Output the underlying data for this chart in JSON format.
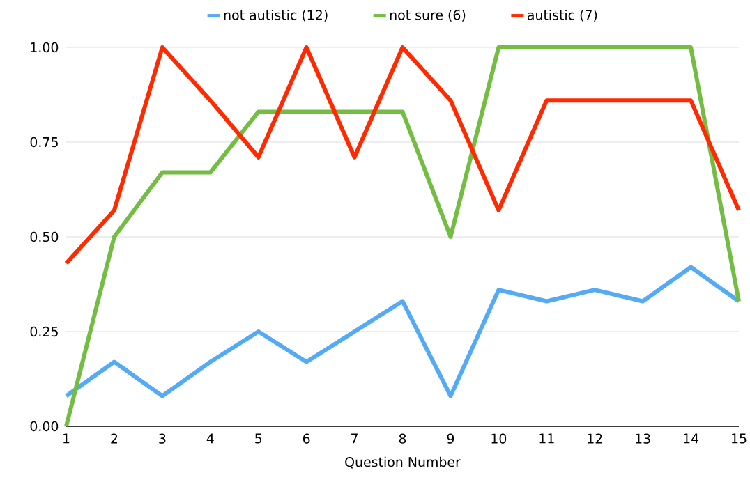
{
  "chart_data": {
    "type": "line",
    "xlabel": "Question Number",
    "x": [
      1,
      2,
      3,
      4,
      5,
      6,
      7,
      8,
      9,
      10,
      11,
      12,
      13,
      14,
      15
    ],
    "series": [
      {
        "name": "not autistic (12)",
        "color": "#55aaf5",
        "values": [
          0.08,
          0.17,
          0.08,
          0.17,
          0.25,
          0.17,
          0.25,
          0.33,
          0.08,
          0.36,
          0.33,
          0.36,
          0.33,
          0.42,
          0.33
        ]
      },
      {
        "name": "not sure (6)",
        "color": "#72bd42",
        "values": [
          0,
          0.5,
          0.67,
          0.67,
          0.83,
          0.83,
          0.83,
          0.83,
          0.5,
          1,
          1,
          1,
          1,
          1,
          0.33
        ]
      },
      {
        "name": "autistic (7)",
        "color": "#ff2a00",
        "values": [
          0.43,
          0.57,
          1,
          0.86,
          0.71,
          1,
          0.71,
          1,
          0.86,
          0.57,
          0.86,
          0.86,
          0.86,
          0.86,
          0.57
        ]
      }
    ],
    "xlim": [
      1,
      15
    ],
    "xticks": [
      1,
      2,
      3,
      4,
      5,
      6,
      7,
      8,
      9,
      10,
      11,
      12,
      13,
      14,
      15
    ],
    "ylim": [
      0,
      1
    ],
    "yticks": [
      {
        "value": 0,
        "label": "0.00"
      },
      {
        "value": 0.25,
        "label": "0.25"
      },
      {
        "value": 0.5,
        "label": "0.50"
      },
      {
        "value": 0.75,
        "label": "0.75"
      },
      {
        "value": 1,
        "label": "1.00"
      }
    ],
    "grid": "y",
    "legend": "top"
  }
}
